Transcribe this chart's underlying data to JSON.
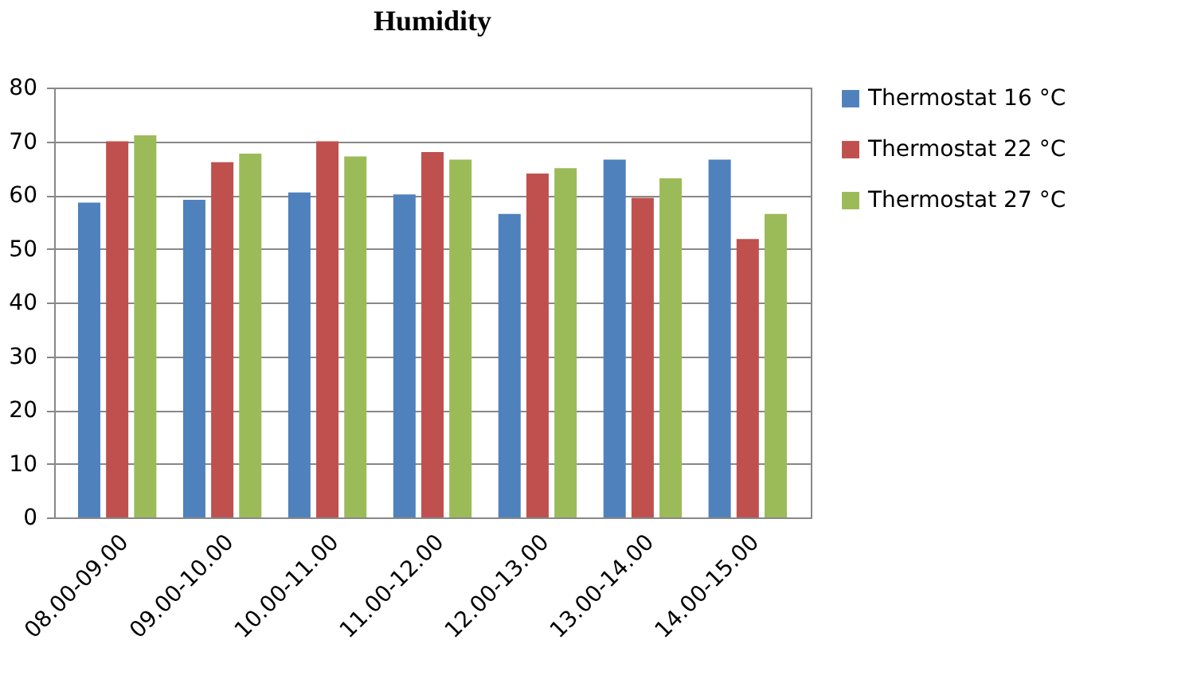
{
  "chart_data": {
    "type": "bar",
    "title": "Humidity",
    "categories": [
      "08.00-09.00",
      "09.00-10.00",
      "10.00-11.00",
      "11.00-12.00",
      "12.00-13.00",
      "13.00-14.00",
      "14.00-15.00"
    ],
    "series": [
      {
        "name": "Thermostat 16 °C",
        "color": "#4f81bd",
        "values": [
          58.6,
          59.1,
          60.5,
          60.1,
          56.5,
          66.6,
          66.6
        ]
      },
      {
        "name": "Thermostat 22 °C",
        "color": "#c0504d",
        "values": [
          70,
          66.1,
          70,
          68,
          64,
          59.5,
          51.8
        ]
      },
      {
        "name": "Thermostat 27 °C",
        "color": "#9bbb59",
        "values": [
          71.1,
          67.7,
          67.2,
          66.6,
          65,
          63.1,
          56.5
        ]
      }
    ],
    "ylim": [
      0,
      80
    ],
    "yticks": [
      0,
      10,
      20,
      30,
      40,
      50,
      60,
      70,
      80
    ],
    "grid": "y",
    "legend": "right"
  }
}
